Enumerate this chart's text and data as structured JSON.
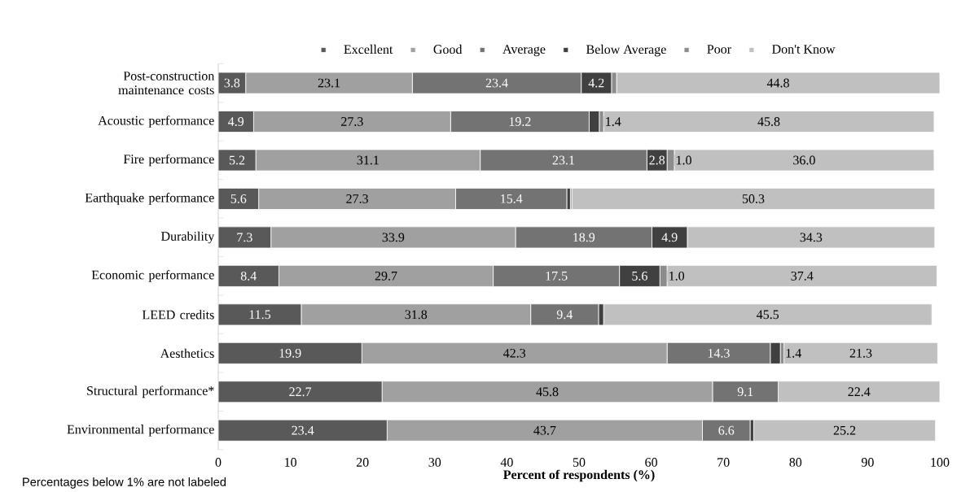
{
  "chart_data": {
    "type": "bar",
    "orientation": "horizontal",
    "stacked": true,
    "legend": "top",
    "categories": [
      "Post-construction maintenance costs",
      "Acoustic performance",
      "Fire performance",
      "Earthquake performance",
      "Durability",
      "Economic performance",
      "LEED credits",
      "Aesthetics",
      "Structural performance*",
      "Environmental performance"
    ],
    "xlabel": "**Percent of respondents (%)**",
    "xlim": [
      0,
      100
    ],
    "xticks": [
      0,
      10,
      20,
      30,
      40,
      50,
      60,
      70,
      80,
      90,
      100
    ],
    "annotations": [
      "Percentages below 1% are not labeled"
    ],
    "series": [
      {
        "name": "Excellent",
        "color": "#595959",
        "values": [
          3.8,
          4.9,
          5.2,
          5.6,
          7.3,
          8.4,
          11.5,
          19.9,
          22.7,
          23.4
        ],
        "value_labels": [
          "3.8",
          "4.9",
          "5.2",
          "5.6",
          "7.3",
          "8.4",
          "11.5",
          "19.9",
          "22.7",
          "23.4"
        ]
      },
      {
        "name": "Good",
        "color": "#a0a0a0",
        "values": [
          23.1,
          27.3,
          31.1,
          27.3,
          33.9,
          29.7,
          31.8,
          42.3,
          45.8,
          43.7
        ],
        "value_labels": [
          "23.1",
          "27.3",
          "31.1",
          "27.3",
          "33.9",
          "29.7",
          "31.8",
          "42.3",
          "45.8",
          "43.7"
        ]
      },
      {
        "name": "Average",
        "color": "#737373",
        "values": [
          23.4,
          19.2,
          23.1,
          15.4,
          18.9,
          17.5,
          9.4,
          14.3,
          9.1,
          6.6
        ],
        "value_labels": [
          "23.4",
          "19.2",
          "23.1",
          "15.4",
          "18.9",
          "17.5",
          "9.4",
          "14.3",
          "9.1",
          "6.6"
        ]
      },
      {
        "name": "Below Average",
        "color": "#404040",
        "values": [
          4.2,
          1.4,
          2.8,
          0.5,
          4.9,
          5.6,
          0.7,
          1.4,
          null,
          0.5
        ],
        "value_labels": [
          "4.2",
          "1.4",
          "2.8",
          null,
          "4.9",
          "5.6",
          null,
          "1.4",
          null,
          null
        ]
      },
      {
        "name": "Poor",
        "color": "#8c8c8c",
        "values": [
          0.7,
          0.6,
          1.0,
          0.2,
          null,
          1.0,
          null,
          0.5,
          null,
          null
        ],
        "value_labels": [
          null,
          null,
          "1.0",
          null,
          null,
          "1.0",
          null,
          null,
          null,
          null
        ]
      },
      {
        "name": "Don't Know",
        "color": "#c0c0c0",
        "values": [
          44.8,
          45.8,
          36.0,
          50.3,
          34.3,
          37.4,
          45.5,
          21.3,
          22.4,
          25.2
        ],
        "value_labels": [
          "44.8",
          "45.8",
          "36.0",
          "50.3",
          "34.3",
          "37.4",
          "45.5",
          "21.3",
          "22.4",
          "25.2"
        ]
      }
    ]
  }
}
